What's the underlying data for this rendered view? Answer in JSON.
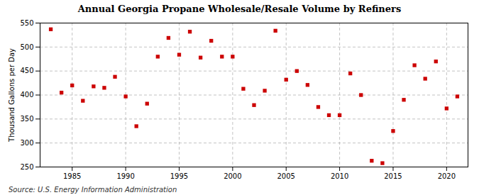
{
  "chart_data": {
    "type": "scatter",
    "title": "Annual Georgia Propane Wholesale/Resale Volume by Refiners",
    "ylabel": "Thousand Gallons per Day",
    "source": "Source: U.S. Energy Information Administration",
    "color": "#cc0000",
    "marker": "square",
    "grid": true,
    "x": [
      1983,
      1984,
      1985,
      1986,
      1987,
      1988,
      1989,
      1990,
      1991,
      1992,
      1993,
      1994,
      1995,
      1996,
      1997,
      1998,
      1999,
      2000,
      2001,
      2002,
      2003,
      2004,
      2005,
      2006,
      2007,
      2008,
      2009,
      2010,
      2011,
      2012,
      2013,
      2014,
      2015,
      2016,
      2017,
      2018,
      2019,
      2020,
      2021
    ],
    "values": [
      537,
      405,
      420,
      388,
      418,
      415,
      438,
      397,
      335,
      382,
      480,
      519,
      484,
      532,
      478,
      513,
      480,
      480,
      413,
      379,
      409,
      534,
      432,
      450,
      421,
      375,
      358,
      358,
      445,
      400,
      263,
      258,
      325,
      390,
      462,
      434,
      470,
      372,
      397
    ],
    "xlim": [
      1982,
      2022
    ],
    "xticks": [
      1985,
      1990,
      1995,
      2000,
      2005,
      2010,
      2015,
      2020
    ],
    "ylim": [
      250,
      550
    ],
    "yticks": [
      250,
      300,
      350,
      400,
      450,
      500,
      550
    ]
  }
}
